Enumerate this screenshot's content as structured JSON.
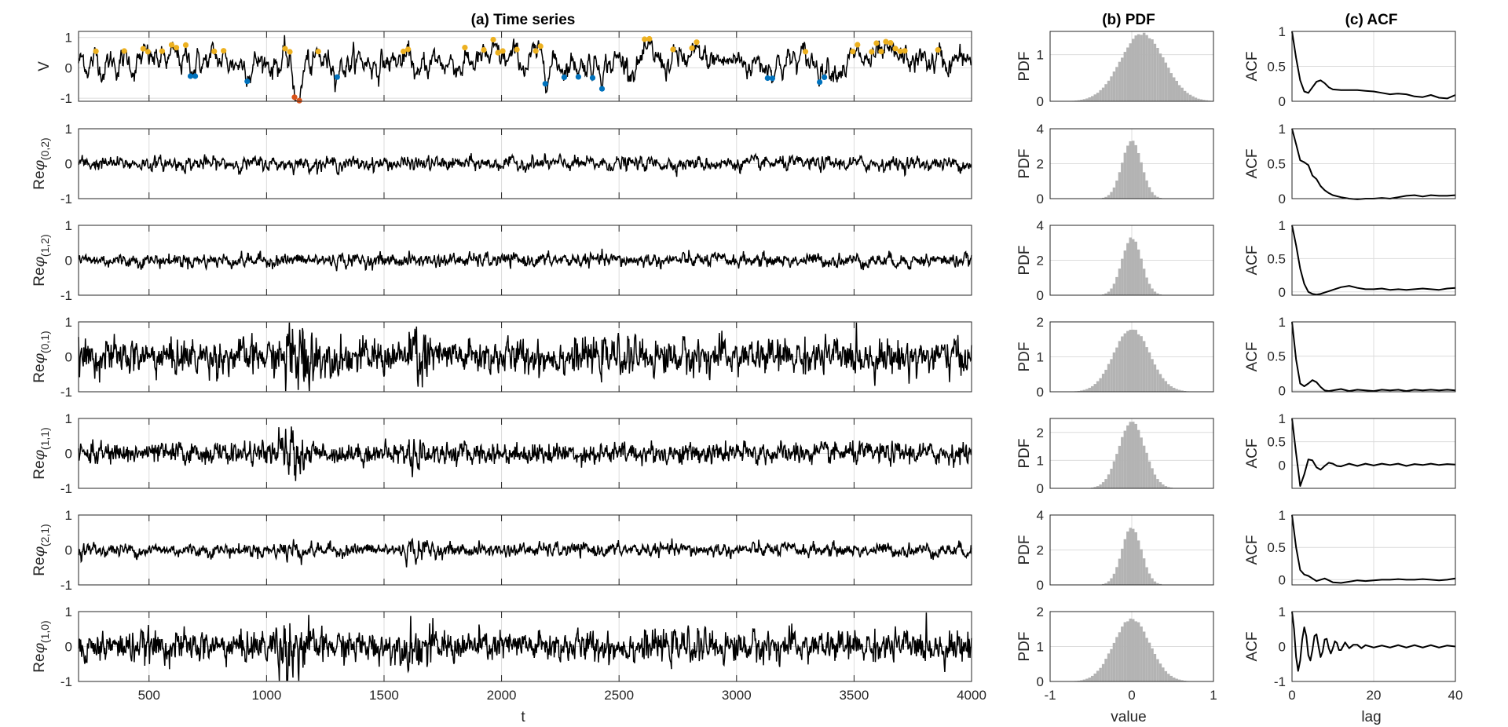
{
  "titles": {
    "a": "(a) Time series",
    "b": "(b) PDF",
    "c": "(c) ACF"
  },
  "xlabels": {
    "a": "t",
    "b": "value",
    "c": "lag"
  },
  "colors": {
    "line": "#000000",
    "hist": "#b3b3b3",
    "extreme_high": "#EDB120",
    "extreme_low": "#0072BD",
    "extreme_major": "#D95319"
  },
  "chart_data": [
    {
      "type": "line",
      "panel": "time-series",
      "title": "(a) Time series",
      "xlabel": "t",
      "xlim": [
        200,
        4000
      ],
      "xticks": [
        500,
        1000,
        1500,
        2000,
        2500,
        3000,
        3500,
        4000
      ],
      "grid": true,
      "markers": "colored points mark extremes of V (above ~0.5 yellow, below ~-0.3 blue, largest excursions orange-red)",
      "series": [
        {
          "name": "V",
          "ylabel": "V",
          "ylim": [
            -1.1,
            1.2
          ],
          "yticks": [
            -1,
            0,
            1
          ],
          "mean": 0.2,
          "amplitude": 0.3,
          "burst_times": [
            1150,
            1650
          ]
        },
        {
          "name": "Re φ(0,2)",
          "ylabel_main": "Re",
          "ylabel_sym": "φ",
          "ylabel_sub": "(0,2)",
          "ylim": [
            -1,
            1
          ],
          "yticks": [
            -1,
            0,
            1
          ],
          "mean": 0.0,
          "amplitude": 0.1
        },
        {
          "name": "Re φ(1,2)",
          "ylabel_main": "Re",
          "ylabel_sym": "φ",
          "ylabel_sub": "(1,2)",
          "ylim": [
            -1,
            1
          ],
          "yticks": [
            -1,
            0,
            1
          ],
          "mean": 0.0,
          "amplitude": 0.1
        },
        {
          "name": "Re φ(0,1)",
          "ylabel_main": "Re",
          "ylabel_sym": "φ",
          "ylabel_sub": "(0,1)",
          "ylim": [
            -1,
            1
          ],
          "yticks": [
            -1,
            0,
            1
          ],
          "mean": 0.0,
          "amplitude": 0.25
        },
        {
          "name": "Re φ(1,1)",
          "ylabel_main": "Re",
          "ylabel_sym": "φ",
          "ylabel_sub": "(1,1)",
          "ylim": [
            -1,
            1
          ],
          "yticks": [
            -1,
            0,
            1
          ],
          "mean": 0.0,
          "amplitude": 0.15
        },
        {
          "name": "Re φ(2,1)",
          "ylabel_main": "Re",
          "ylabel_sym": "φ",
          "ylabel_sub": "(2,1)",
          "ylim": [
            -1,
            1
          ],
          "yticks": [
            -1,
            0,
            1
          ],
          "mean": 0.0,
          "amplitude": 0.1
        },
        {
          "name": "Re φ(1,0)",
          "ylabel_main": "Re",
          "ylabel_sym": "φ",
          "ylabel_sub": "(1,0)",
          "ylim": [
            -1,
            1
          ],
          "yticks": [
            -1,
            0,
            1
          ],
          "mean": 0.0,
          "amplitude": 0.22
        }
      ]
    },
    {
      "type": "bar",
      "panel": "pdf",
      "title": "(b) PDF",
      "xlabel": "value",
      "ylabel": "PDF",
      "xlim": [
        -1,
        1
      ],
      "xticks": [
        -1,
        0,
        1
      ],
      "grid": true,
      "series": [
        {
          "ylabel": "PDF",
          "ylim": [
            0,
            1.5
          ],
          "yticks": [
            0,
            1
          ],
          "mean": 0.13,
          "sd": 0.27,
          "peak": 1.45
        },
        {
          "ylabel": "PDF",
          "ylim": [
            0,
            4
          ],
          "yticks": [
            0,
            2,
            4
          ],
          "mean": 0.0,
          "sd": 0.12,
          "peak": 3.3
        },
        {
          "ylabel": "PDF",
          "ylim": [
            0,
            4
          ],
          "yticks": [
            0,
            2,
            4
          ],
          "mean": 0.0,
          "sd": 0.12,
          "peak": 3.3
        },
        {
          "ylabel": "PDF",
          "ylim": [
            0,
            2
          ],
          "yticks": [
            0,
            1,
            2
          ],
          "mean": 0.0,
          "sd": 0.22,
          "peak": 1.8
        },
        {
          "ylabel": "PDF",
          "ylim": [
            0,
            2.5
          ],
          "yticks": [
            0,
            1,
            2
          ],
          "mean": 0.0,
          "sd": 0.16,
          "peak": 2.4
        },
        {
          "ylabel": "PDF",
          "ylim": [
            0,
            4
          ],
          "yticks": [
            0,
            2,
            4
          ],
          "mean": 0.0,
          "sd": 0.12,
          "peak": 3.3
        },
        {
          "ylabel": "PDF",
          "ylim": [
            0,
            2
          ],
          "yticks": [
            0,
            1,
            2
          ],
          "mean": 0.0,
          "sd": 0.22,
          "peak": 1.8
        }
      ]
    },
    {
      "type": "line",
      "panel": "acf",
      "title": "(c) ACF",
      "xlabel": "lag",
      "ylabel": "ACF",
      "xlim": [
        0,
        40
      ],
      "xticks": [
        0,
        20,
        40
      ],
      "grid": true,
      "series": [
        {
          "ylabel": "ACF",
          "ylim": [
            0,
            1
          ],
          "yticks": [
            0,
            0.5,
            1
          ],
          "ytick_labels": [
            "0",
            "0.5",
            "1"
          ],
          "lag": [
            0,
            1,
            2,
            3,
            4,
            5,
            6,
            7,
            8,
            9,
            10,
            12,
            14,
            16,
            18,
            20,
            22,
            24,
            26,
            28,
            30,
            32,
            34,
            36,
            38,
            40
          ],
          "acf": [
            1.0,
            0.62,
            0.3,
            0.14,
            0.12,
            0.2,
            0.28,
            0.3,
            0.26,
            0.2,
            0.17,
            0.16,
            0.16,
            0.16,
            0.15,
            0.14,
            0.12,
            0.1,
            0.11,
            0.1,
            0.07,
            0.06,
            0.09,
            0.05,
            0.04,
            0.09
          ]
        },
        {
          "ylabel": "ACF",
          "ylim": [
            0,
            1
          ],
          "yticks": [
            0,
            0.5,
            1
          ],
          "ytick_labels": [
            "0",
            "0.5",
            "1"
          ],
          "lag": [
            0,
            1,
            2,
            3,
            4,
            5,
            6,
            7,
            8,
            9,
            10,
            12,
            14,
            16,
            18,
            20,
            22,
            24,
            26,
            28,
            30,
            32,
            34,
            36,
            38,
            40
          ],
          "acf": [
            1.0,
            0.78,
            0.55,
            0.52,
            0.48,
            0.33,
            0.28,
            0.18,
            0.12,
            0.08,
            0.05,
            0.02,
            0.0,
            -0.01,
            0.0,
            0.0,
            0.01,
            0.0,
            0.02,
            0.04,
            0.05,
            0.03,
            0.05,
            0.04,
            0.04,
            0.05
          ]
        },
        {
          "ylabel": "ACF",
          "ylim": [
            -0.05,
            1
          ],
          "yticks": [
            0,
            0.5,
            1
          ],
          "ytick_labels": [
            "0",
            "0.5",
            "1"
          ],
          "lag": [
            0,
            1,
            2,
            3,
            4,
            5,
            6,
            7,
            8,
            9,
            10,
            12,
            14,
            16,
            18,
            20,
            22,
            24,
            26,
            28,
            30,
            32,
            34,
            36,
            38,
            40
          ],
          "acf": [
            1.0,
            0.7,
            0.35,
            0.12,
            0.0,
            -0.03,
            -0.04,
            -0.03,
            -0.01,
            0.01,
            0.03,
            0.07,
            0.09,
            0.06,
            0.04,
            0.04,
            0.05,
            0.03,
            0.04,
            0.03,
            0.04,
            0.05,
            0.04,
            0.03,
            0.05,
            0.06
          ]
        },
        {
          "ylabel": "ACF",
          "ylim": [
            -0.02,
            1
          ],
          "yticks": [
            0,
            0.5,
            1
          ],
          "ytick_labels": [
            "0",
            "0.5",
            "1"
          ],
          "lag": [
            0,
            1,
            2,
            3,
            4,
            5,
            6,
            7,
            8,
            9,
            10,
            12,
            14,
            16,
            18,
            20,
            22,
            24,
            26,
            28,
            30,
            32,
            34,
            36,
            38,
            40
          ],
          "acf": [
            1.0,
            0.45,
            0.1,
            0.06,
            0.1,
            0.15,
            0.12,
            0.05,
            0.0,
            -0.01,
            0.0,
            0.02,
            -0.01,
            0.01,
            0.0,
            -0.01,
            0.01,
            0.0,
            0.01,
            -0.01,
            0.01,
            0.0,
            0.01,
            0.0,
            0.01,
            0.0
          ]
        },
        {
          "ylabel": "ACF",
          "ylim": [
            -0.5,
            1
          ],
          "yticks": [
            0,
            0.5,
            1
          ],
          "ytick_labels": [
            "0",
            "0.5",
            "1"
          ],
          "lag": [
            0,
            1,
            2,
            3,
            4,
            5,
            6,
            7,
            8,
            9,
            10,
            11,
            12,
            14,
            16,
            18,
            20,
            22,
            24,
            26,
            28,
            30,
            32,
            34,
            36,
            38,
            40
          ],
          "acf": [
            1.0,
            0.25,
            -0.45,
            -0.2,
            0.12,
            0.1,
            -0.05,
            -0.1,
            -0.02,
            0.05,
            0.03,
            -0.02,
            -0.03,
            0.03,
            -0.02,
            0.03,
            -0.01,
            0.03,
            0.0,
            0.03,
            -0.02,
            0.02,
            0.0,
            0.03,
            0.0,
            0.02,
            0.01
          ]
        },
        {
          "ylabel": "ACF",
          "ylim": [
            -0.08,
            1
          ],
          "yticks": [
            0,
            0.5,
            1
          ],
          "ytick_labels": [
            "0",
            "0.5",
            "1"
          ],
          "lag": [
            0,
            1,
            2,
            3,
            4,
            5,
            6,
            7,
            8,
            9,
            10,
            12,
            14,
            16,
            18,
            20,
            22,
            24,
            26,
            28,
            30,
            32,
            34,
            36,
            38,
            40
          ],
          "acf": [
            1.0,
            0.5,
            0.15,
            0.08,
            0.06,
            0.02,
            -0.02,
            0.0,
            0.02,
            -0.01,
            -0.04,
            -0.05,
            -0.03,
            -0.01,
            -0.02,
            -0.01,
            0.0,
            0.0,
            0.01,
            0.0,
            0.0,
            0.01,
            0.0,
            -0.01,
            0.0,
            0.02
          ]
        },
        {
          "ylabel": "ACF",
          "ylim": [
            -1,
            1
          ],
          "yticks": [
            -1,
            0,
            1
          ],
          "ytick_labels": [
            "-1",
            "0",
            "1"
          ],
          "lag": [
            0,
            0.5,
            1,
            1.5,
            2,
            2.5,
            3,
            3.5,
            4,
            4.5,
            5,
            5.5,
            6,
            6.5,
            7,
            7.5,
            8,
            8.5,
            9,
            9.5,
            10,
            10.5,
            11,
            11.5,
            12,
            13,
            14,
            15,
            16,
            17,
            18,
            20,
            22,
            24,
            26,
            28,
            30,
            32,
            34,
            36,
            38,
            40
          ],
          "acf": [
            1.0,
            0.5,
            -0.3,
            -0.7,
            -0.4,
            0.2,
            0.55,
            0.3,
            -0.25,
            -0.4,
            -0.1,
            0.3,
            0.35,
            0.0,
            -0.3,
            -0.15,
            0.2,
            0.22,
            -0.05,
            -0.2,
            -0.05,
            0.15,
            0.1,
            -0.1,
            -0.1,
            0.12,
            -0.05,
            0.05,
            0.05,
            -0.05,
            0.04,
            -0.03,
            0.03,
            -0.03,
            0.04,
            -0.03,
            0.04,
            -0.03,
            0.04,
            -0.03,
            0.03,
            0.0
          ]
        }
      ]
    }
  ]
}
